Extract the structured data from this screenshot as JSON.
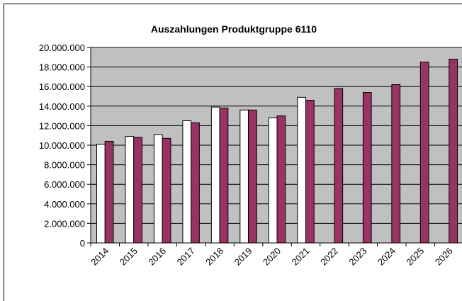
{
  "chart_data": {
    "type": "bar",
    "title": "Auszahlungen Produktgruppe 6110",
    "categories": [
      "2014",
      "2015",
      "2016",
      "2017",
      "2018",
      "2019",
      "2020",
      "2021",
      "2022",
      "2023",
      "2024",
      "2025",
      "2026"
    ],
    "series": [
      {
        "color": "#ffffff",
        "values": [
          10100000,
          10900000,
          11100000,
          12500000,
          13900000,
          13600000,
          12800000,
          14900000,
          null,
          null,
          null,
          null,
          null
        ]
      },
      {
        "color": "#993366",
        "values": [
          10400000,
          10800000,
          10700000,
          12300000,
          13800000,
          13600000,
          13000000,
          14600000,
          15800000,
          15400000,
          16200000,
          18500000,
          18800000
        ]
      }
    ],
    "ylim": [
      0,
      20000000
    ],
    "yticks": [
      0,
      {
        "value": 2000000,
        "label": "2.000.000"
      },
      {
        "value": 4000000,
        "label": "4.000.000"
      },
      {
        "value": 6000000,
        "label": "6.000.000"
      },
      {
        "value": 8000000,
        "label": "8.000.000"
      },
      {
        "value": 10000000,
        "label": "10.000.000"
      },
      {
        "value": 12000000,
        "label": "12.000.000"
      },
      {
        "value": 14000000,
        "label": "14.000.000"
      },
      {
        "value": 16000000,
        "label": "16.000.000"
      },
      {
        "value": 18000000,
        "label": "18.000.000"
      },
      {
        "value": 20000000,
        "label": "20.000.000"
      }
    ],
    "grid": true,
    "plot_background": "#c0c0c0"
  }
}
